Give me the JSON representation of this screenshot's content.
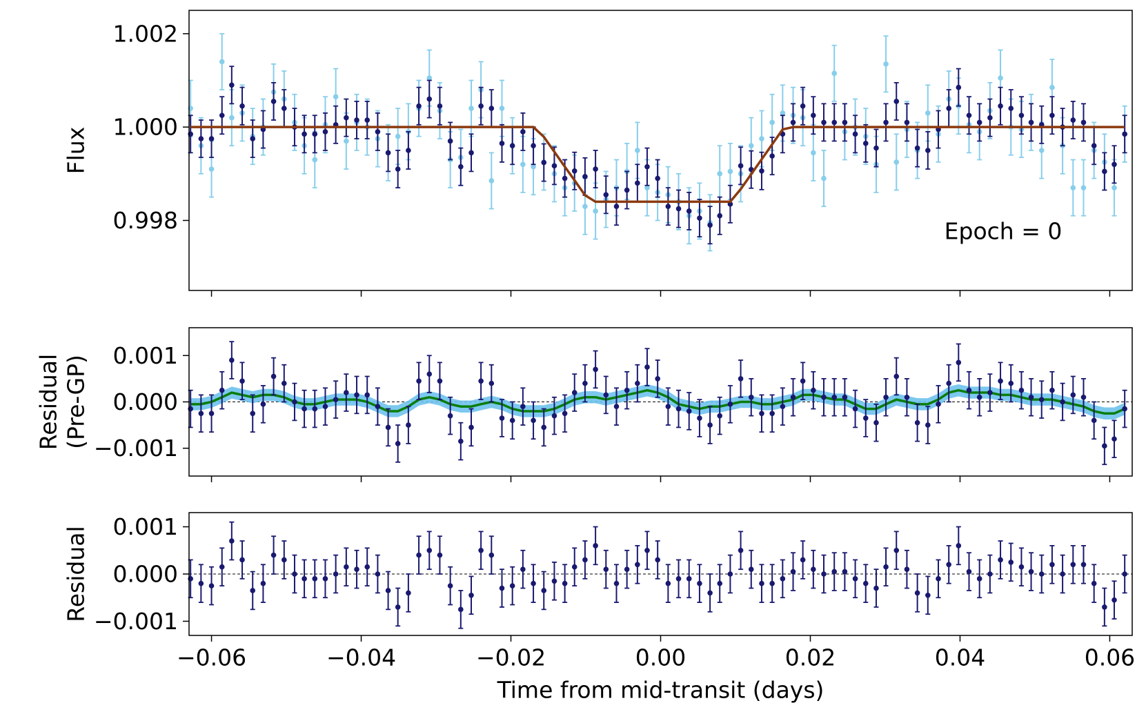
{
  "chart_data": [
    {
      "type": "errorbar",
      "ylabel": [
        "Flux"
      ],
      "annotation": "Epoch = 0",
      "xlim": [
        -0.063,
        0.063
      ],
      "xticks": [
        -0.06,
        -0.04,
        -0.02,
        0,
        0.02,
        0.04,
        0.06
      ],
      "ylim": [
        0.9965,
        1.0025
      ],
      "yticks": [
        1.002,
        {
          "value": 1.0,
          "label": "1.000"
        },
        0.998
      ],
      "x": [
        -0.0628,
        -0.0614,
        -0.06,
        -0.0586,
        -0.0573,
        -0.0559,
        -0.0545,
        -0.0531,
        -0.0517,
        -0.0503,
        -0.0489,
        -0.0476,
        -0.0462,
        -0.0448,
        -0.0434,
        -0.042,
        -0.0406,
        -0.0392,
        -0.0378,
        -0.0364,
        -0.0351,
        -0.0337,
        -0.0323,
        -0.0309,
        -0.0295,
        -0.0281,
        -0.0267,
        -0.0253,
        -0.024,
        -0.0226,
        -0.0212,
        -0.0198,
        -0.0184,
        -0.017,
        -0.0156,
        -0.0142,
        -0.0128,
        -0.0115,
        -0.0101,
        -0.0087,
        -0.0073,
        -0.0059,
        -0.0045,
        -0.0031,
        -0.0018,
        -0.0004,
        0.001,
        0.0024,
        0.0038,
        0.0052,
        0.0066,
        0.0079,
        0.0093,
        0.0107,
        0.0121,
        0.0135,
        0.0149,
        0.0163,
        0.0177,
        0.019,
        0.0204,
        0.0218,
        0.0232,
        0.0246,
        0.026,
        0.0274,
        0.0288,
        0.0301,
        0.0315,
        0.0329,
        0.0343,
        0.0357,
        0.0371,
        0.0385,
        0.0398,
        0.0412,
        0.0426,
        0.044,
        0.0454,
        0.0468,
        0.0482,
        0.0495,
        0.0509,
        0.0523,
        0.0537,
        0.0551,
        0.0565,
        0.0579,
        0.0593,
        0.0606,
        0.062
      ],
      "series": [
        {
          "style": "points",
          "color": "#87ceeb",
          "error": 0.0006,
          "values": [
            1.0004,
            0.9996,
            0.9991,
            1.0014,
            1.0002,
            1.0003,
            0.9998,
            1.0,
            1.00075,
            1.0006,
            1.0001,
            0.9996,
            0.9993,
            1.00005,
            1.00065,
            0.9997,
            1.0001,
            1.0,
            0.99975,
            0.99945,
            0.9998,
            0.9999,
            1.0004,
            1.00105,
            1.00035,
            0.9993,
            0.99935,
            1.0004,
            1.0008,
            0.99885,
            1.0004,
            0.9996,
            0.9992,
            0.99915,
            0.99925,
            0.999,
            0.9987,
            0.9988,
            0.9983,
            0.9982,
            0.99845,
            0.9987,
            0.99905,
            0.9995,
            0.9987,
            0.9986,
            0.99855,
            0.9984,
            0.9981,
            0.9982,
            0.99795,
            0.999,
            0.99905,
            0.999,
            0.9996,
            0.99975,
            1.0001,
            1.0003,
            1.00025,
            1.0002,
            0.99945,
            0.9989,
            1.00115,
            0.9999,
            1.0,
            0.9998,
            0.9992,
            1.00135,
            0.99925,
            0.99995,
            0.9995,
            1.0003,
            0.99985,
            1.0006,
            1.00045,
            1.00005,
            0.9999,
            1.00035,
            1.00105,
            1.0,
            0.99995,
            1.0001,
            0.9995,
            1.00085,
            0.9996,
            0.9987,
            0.9987,
            0.9995,
            0.99925,
            0.9987,
            0.99985
          ]
        },
        {
          "style": "points",
          "color": "#191970",
          "error": 0.0004,
          "values": [
            0.99985,
            0.99975,
            0.99975,
            1.00025,
            1.0009,
            1.00045,
            0.99975,
            0.99995,
            1.00055,
            1.0004,
            1.0,
            0.99985,
            0.99985,
            0.9999,
            1.00005,
            1.0002,
            1.00015,
            1.00015,
            0.9999,
            0.99945,
            0.9991,
            0.9995,
            1.00045,
            1.0006,
            1.00045,
            0.9997,
            0.99915,
            0.99945,
            1.00045,
            1.0004,
            0.99965,
            0.9996,
            0.9999,
            0.9996,
            0.99924,
            0.99917,
            0.9989,
            0.99906,
            0.99894,
            0.9991,
            0.99855,
            0.9983,
            0.99865,
            0.9988,
            0.99915,
            0.9989,
            0.9983,
            0.99825,
            0.9982,
            0.99805,
            0.9979,
            0.9981,
            0.99835,
            0.99917,
            0.99909,
            0.99906,
            0.99938,
            0.99985,
            1.0001,
            1.00045,
            1.00025,
            1.0001,
            1.0001,
            1.0001,
            0.99985,
            0.99965,
            0.99955,
            1.0001,
            1.00055,
            1.0001,
            0.99955,
            0.9995,
            0.99995,
            1.0004,
            1.00085,
            1.00025,
            1.0001,
            1.0002,
            1.00045,
            1.0004,
            1.00025,
            1.0001,
            1.00005,
            1.00025,
            1.0,
            1.00015,
            1.0001,
            0.9996,
            0.99905,
            0.9992,
            0.99985
          ]
        },
        {
          "style": "line",
          "color": "#8b3a0f",
          "values": [
            1,
            1,
            1,
            1,
            1,
            1,
            1,
            1,
            1,
            1,
            1,
            1,
            1,
            1,
            1,
            1,
            1,
            1,
            1,
            1,
            1,
            1,
            1,
            1,
            1,
            1,
            1,
            1,
            1,
            1,
            1,
            1,
            1,
            1,
            0.99979,
            0.99947,
            0.99915,
            0.99886,
            0.99854,
            0.9984,
            0.9984,
            0.9984,
            0.9984,
            0.9984,
            0.9984,
            0.9984,
            0.9984,
            0.9984,
            0.9984,
            0.9984,
            0.9984,
            0.9984,
            0.9984,
            0.99867,
            0.99899,
            0.99931,
            0.99963,
            0.99995,
            1,
            1,
            1,
            1,
            1,
            1,
            1,
            1,
            1,
            1,
            1,
            1,
            1,
            1,
            1,
            1,
            1,
            1,
            1,
            1,
            1,
            1,
            1,
            1,
            1,
            1,
            1,
            1,
            1,
            1,
            1,
            1,
            1
          ]
        }
      ]
    },
    {
      "type": "errorbar",
      "ylabel": [
        "Residual",
        "(Pre-GP)"
      ],
      "xlim": [
        -0.063,
        0.063
      ],
      "xticks": [
        -0.06,
        -0.04,
        -0.02,
        0,
        0.02,
        0.04,
        0.06
      ],
      "ylim": [
        -0.0016,
        0.0016
      ],
      "yticks": [
        0.001,
        {
          "value": 0,
          "label": "0.000"
        },
        {
          "value": -0.001,
          "label": "−0.001"
        }
      ],
      "hline": 0,
      "x": [
        -0.0628,
        -0.0614,
        -0.06,
        -0.0586,
        -0.0573,
        -0.0559,
        -0.0545,
        -0.0531,
        -0.0517,
        -0.0503,
        -0.0489,
        -0.0476,
        -0.0462,
        -0.0448,
        -0.0434,
        -0.042,
        -0.0406,
        -0.0392,
        -0.0378,
        -0.0364,
        -0.0351,
        -0.0337,
        -0.0323,
        -0.0309,
        -0.0295,
        -0.0281,
        -0.0267,
        -0.0253,
        -0.024,
        -0.0226,
        -0.0212,
        -0.0198,
        -0.0184,
        -0.017,
        -0.0156,
        -0.0142,
        -0.0128,
        -0.0115,
        -0.0101,
        -0.0087,
        -0.0073,
        -0.0059,
        -0.0045,
        -0.0031,
        -0.0018,
        -0.0004,
        0.001,
        0.0024,
        0.0038,
        0.0052,
        0.0066,
        0.0079,
        0.0093,
        0.0107,
        0.0121,
        0.0135,
        0.0149,
        0.0163,
        0.0177,
        0.019,
        0.0204,
        0.0218,
        0.0232,
        0.0246,
        0.026,
        0.0274,
        0.0288,
        0.0301,
        0.0315,
        0.0329,
        0.0343,
        0.0357,
        0.0371,
        0.0385,
        0.0398,
        0.0412,
        0.0426,
        0.044,
        0.0454,
        0.0468,
        0.0482,
        0.0495,
        0.0509,
        0.0523,
        0.0537,
        0.0551,
        0.0565,
        0.0579,
        0.0593,
        0.0606,
        0.062
      ],
      "series": [
        {
          "style": "line",
          "color": "#0a7d0a",
          "band": 0.00013,
          "band_color": "#6ec2ec",
          "values": [
            -5e-05,
            -5e-05,
            0,
            0.0001,
            0.0002,
            0.00015,
            0.0001,
            0.00015,
            0.00015,
            0.0001,
            0,
            -5e-05,
            -5e-05,
            0,
            5e-05,
            5e-05,
            5e-05,
            0,
            -0.0001,
            -0.0002,
            -0.0002,
            -0.0001,
            5e-05,
            0.0001,
            5e-05,
            -5e-05,
            -0.0001,
            -0.0001,
            -5e-05,
            0,
            -5e-05,
            -0.00015,
            -0.0002,
            -0.0002,
            -0.0002,
            -0.00015,
            -5e-05,
            5e-05,
            0.0001,
            0.0001,
            5e-05,
            0.0001,
            0.00015,
            0.0002,
            0.00025,
            0.0002,
            0.0001,
            -5e-05,
            -0.0001,
            -0.00015,
            -0.0001,
            -0.0001,
            -5e-05,
            0,
            0,
            -5e-05,
            -5e-05,
            0,
            5e-05,
            0.00015,
            0.00015,
            0.0001,
            5e-05,
            5e-05,
            -5e-05,
            -0.00015,
            -0.00015,
            -5e-05,
            5e-05,
            0,
            -5e-05,
            -5e-05,
            5e-05,
            0.0002,
            0.00025,
            0.0002,
            0.0002,
            0.0002,
            0.00015,
            0.00015,
            0.0001,
            5e-05,
            5e-05,
            5e-05,
            0,
            -5e-05,
            -0.0001,
            -0.0002,
            -0.00025,
            -0.00025,
            -0.00015
          ]
        },
        {
          "style": "points",
          "color": "#191970",
          "error": 0.0004,
          "values": [
            -0.00015,
            -0.00025,
            -0.00025,
            0.00025,
            0.0009,
            0.00045,
            -0.00025,
            -5e-05,
            0.00055,
            0.0004,
            0,
            -0.00015,
            -0.00015,
            -0.0001,
            5e-05,
            0.0002,
            0.00015,
            0.00015,
            -0.0001,
            -0.00055,
            -0.0009,
            -0.0005,
            0.00045,
            0.0006,
            0.00045,
            -0.0003,
            -0.00085,
            -0.00055,
            0.00045,
            0.0004,
            -0.00035,
            -0.0004,
            -0.0001,
            -0.0004,
            -0.00055,
            -0.0003,
            -0.00025,
            0.0002,
            0.0004,
            0.0007,
            0.00015,
            -0.0001,
            0.00025,
            0.0004,
            0.00075,
            0.0005,
            -0.0001,
            -0.00015,
            -0.0002,
            -0.00035,
            -0.0005,
            -0.0003,
            -5e-05,
            0.0005,
            0.0001,
            -0.00025,
            -0.00025,
            -0.0001,
            0.0001,
            0.00045,
            0.00025,
            0.0001,
            0.0001,
            0.0001,
            -0.00015,
            -0.00035,
            -0.00045,
            0.0001,
            0.00055,
            0.0001,
            -0.00045,
            -0.0005,
            -5e-05,
            0.0004,
            0.00085,
            0.00025,
            0.0001,
            0.0002,
            0.00045,
            0.0004,
            0.00025,
            0.0001,
            5e-05,
            0.00025,
            0,
            0.00015,
            0.0001,
            -0.0004,
            -0.00095,
            -0.0008,
            -0.00015
          ]
        }
      ]
    },
    {
      "type": "errorbar",
      "ylabel": [
        "Residual"
      ],
      "xlabel": "Time from mid-transit (days)",
      "show_xtick_labels": true,
      "xlim": [
        -0.063,
        0.063
      ],
      "xticks": [
        {
          "value": -0.06,
          "label": "−0.06"
        },
        {
          "value": -0.04,
          "label": "−0.04"
        },
        {
          "value": -0.02,
          "label": "−0.02"
        },
        {
          "value": 0,
          "label": "0.00"
        },
        0.02,
        0.04,
        0.06
      ],
      "ylim": [
        -0.0013,
        0.0013
      ],
      "yticks": [
        0.001,
        {
          "value": 0,
          "label": "0.000"
        },
        {
          "value": -0.001,
          "label": "−0.001"
        }
      ],
      "hline": 0,
      "x": [
        -0.0628,
        -0.0614,
        -0.06,
        -0.0586,
        -0.0573,
        -0.0559,
        -0.0545,
        -0.0531,
        -0.0517,
        -0.0503,
        -0.0489,
        -0.0476,
        -0.0462,
        -0.0448,
        -0.0434,
        -0.042,
        -0.0406,
        -0.0392,
        -0.0378,
        -0.0364,
        -0.0351,
        -0.0337,
        -0.0323,
        -0.0309,
        -0.0295,
        -0.0281,
        -0.0267,
        -0.0253,
        -0.024,
        -0.0226,
        -0.0212,
        -0.0198,
        -0.0184,
        -0.017,
        -0.0156,
        -0.0142,
        -0.0128,
        -0.0115,
        -0.0101,
        -0.0087,
        -0.0073,
        -0.0059,
        -0.0045,
        -0.0031,
        -0.0018,
        -0.0004,
        0.001,
        0.0024,
        0.0038,
        0.0052,
        0.0066,
        0.0079,
        0.0093,
        0.0107,
        0.0121,
        0.0135,
        0.0149,
        0.0163,
        0.0177,
        0.019,
        0.0204,
        0.0218,
        0.0232,
        0.0246,
        0.026,
        0.0274,
        0.0288,
        0.0301,
        0.0315,
        0.0329,
        0.0343,
        0.0357,
        0.0371,
        0.0385,
        0.0398,
        0.0412,
        0.0426,
        0.044,
        0.0454,
        0.0468,
        0.0482,
        0.0495,
        0.0509,
        0.0523,
        0.0537,
        0.0551,
        0.0565,
        0.0579,
        0.0593,
        0.0606,
        0.062
      ],
      "series": [
        {
          "style": "points",
          "color": "#191970",
          "error": 0.0004,
          "values": [
            -0.0001,
            -0.0002,
            -0.00025,
            0.00015,
            0.0007,
            0.0003,
            -0.00035,
            -0.0002,
            0.0004,
            0.0003,
            0,
            -0.0001,
            -0.0001,
            -0.0001,
            0,
            0.00015,
            0.0001,
            0.00015,
            0,
            -0.00035,
            -0.0007,
            -0.0004,
            0.0004,
            0.0005,
            0.0004,
            -0.00025,
            -0.00075,
            -0.00045,
            0.0005,
            0.0004,
            -0.0003,
            -0.00025,
            0.0001,
            -0.0002,
            -0.00035,
            -0.00015,
            -0.0002,
            0.00015,
            0.0003,
            0.0006,
            0.0001,
            -0.0002,
            0.0001,
            0.0002,
            0.0005,
            0.0003,
            -0.0002,
            -0.0001,
            -0.0001,
            -0.0002,
            -0.0004,
            -0.0002,
            0,
            0.0005,
            0.0001,
            -0.0002,
            -0.0002,
            -0.0001,
            5e-05,
            0.0003,
            0.0001,
            0,
            5e-05,
            5e-05,
            -0.0001,
            -0.0002,
            -0.0003,
            0.00015,
            0.0005,
            0.0001,
            -0.0004,
            -0.00045,
            -0.0001,
            0.0002,
            0.0006,
            5e-05,
            -0.0001,
            0,
            0.0003,
            0.00025,
            0.00015,
            5e-05,
            0,
            0.0002,
            0,
            0.0002,
            0.0002,
            -0.0002,
            -0.0007,
            -0.00055,
            0
          ]
        }
      ]
    }
  ]
}
